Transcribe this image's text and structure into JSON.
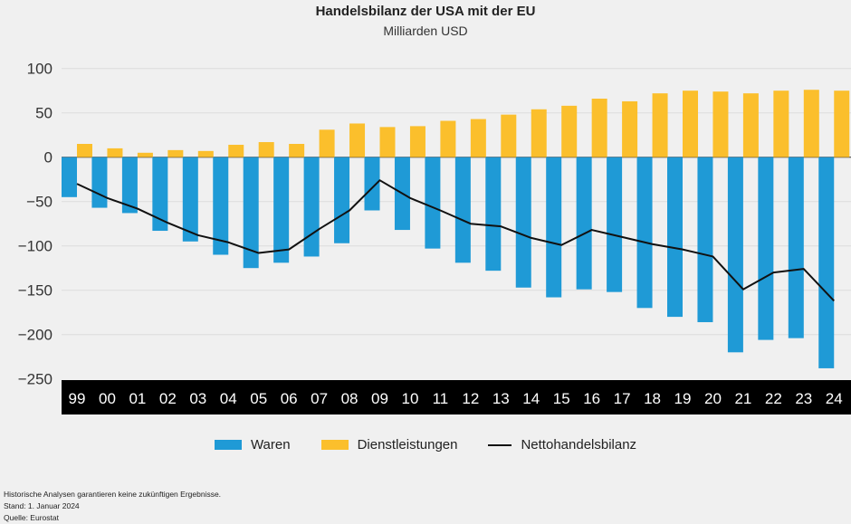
{
  "chart_data": {
    "type": "bar",
    "title": "Handelsbilanz der USA mit der EU",
    "subtitle": "Milliarden USD",
    "categories": [
      "99",
      "00",
      "01",
      "02",
      "03",
      "04",
      "05",
      "06",
      "07",
      "08",
      "09",
      "10",
      "11",
      "12",
      "13",
      "14",
      "15",
      "16",
      "17",
      "18",
      "19",
      "20",
      "21",
      "22",
      "23",
      "24"
    ],
    "ylim": [
      -250,
      100
    ],
    "yticks": [
      100,
      50,
      0,
      -50,
      -100,
      -150,
      -200,
      -250
    ],
    "grid": true,
    "legend_placement": "bottom",
    "series": [
      {
        "name": "Waren",
        "type": "bar",
        "color": "#1f9ad6",
        "values": [
          -45,
          -57,
          -63,
          -83,
          -95,
          -110,
          -125,
          -119,
          -112,
          -97,
          -60,
          -82,
          -103,
          -119,
          -128,
          -147,
          -158,
          -149,
          -152,
          -170,
          -180,
          -186,
          -220,
          -206,
          -204,
          -238
        ]
      },
      {
        "name": "Dienstleistungen",
        "type": "bar",
        "color": "#fbbf2c",
        "values": [
          15,
          10,
          5,
          8,
          7,
          14,
          17,
          15,
          31,
          38,
          34,
          35,
          41,
          43,
          48,
          54,
          58,
          66,
          63,
          72,
          75,
          74,
          72,
          75,
          76,
          75
        ]
      },
      {
        "name": "Nettohandelsbilanz",
        "type": "line",
        "color": "#111111",
        "values": [
          -30,
          -46,
          -58,
          -74,
          -88,
          -96,
          -108,
          -104,
          -81,
          -60,
          -26,
          -46,
          -60,
          -75,
          -78,
          -91,
          -99,
          -82,
          -90,
          -98,
          -104,
          -112,
          -149,
          -130,
          -126,
          -162
        ]
      }
    ]
  },
  "footer": {
    "disclaimer": "Historische Analysen garantieren keine zukünftigen Ergebnisse.",
    "date": "Stand: 1. Januar 2024",
    "source": "Quelle: Eurostat"
  }
}
